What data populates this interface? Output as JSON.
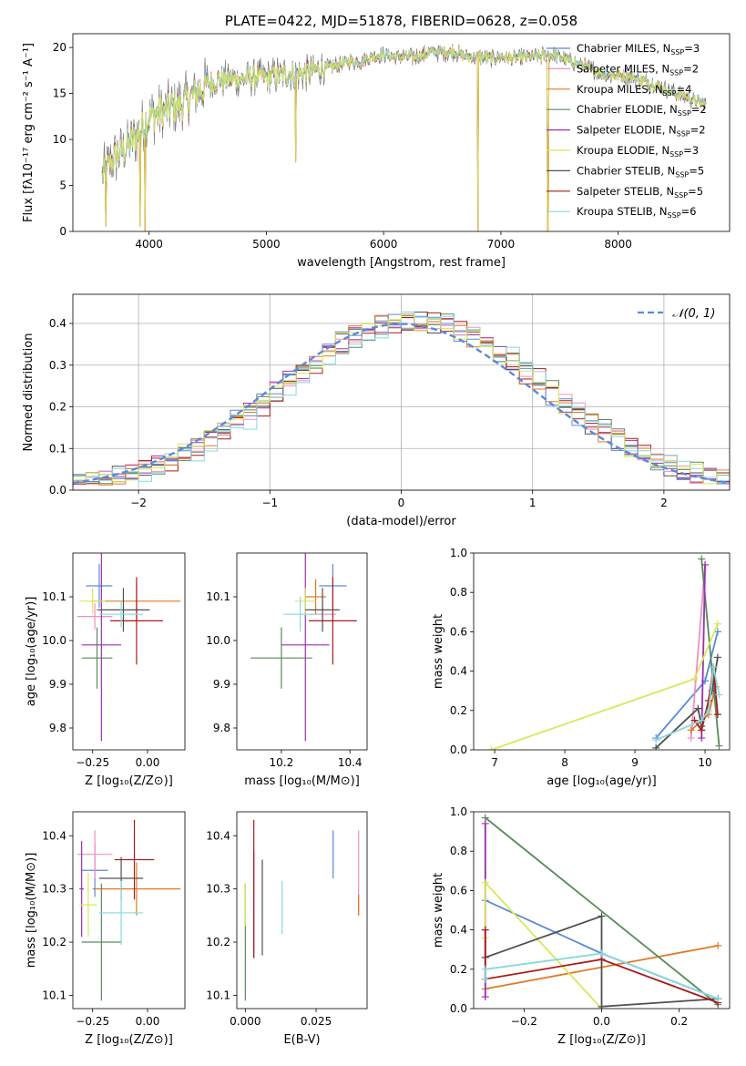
{
  "colors": [
    "#5a8ad8",
    "#f090c0",
    "#e07a28",
    "#5a8a5a",
    "#9a30b0",
    "#d8e858",
    "#505050",
    "#aa1a1a",
    "#88d8dc"
  ],
  "chart_data": [
    {
      "id": "spectrum",
      "type": "line",
      "title": "PLATE=0422, MJD=51878, FIBERID=0628, z=0.058",
      "xlabel": "wavelength [Angstrom, rest frame]",
      "ylabel": "Flux [fλ10⁻¹⁷ erg cm⁻² s⁻¹ A⁻¹]",
      "xlim": [
        3350,
        8950
      ],
      "ylim": [
        0,
        21.5
      ],
      "xticks": [
        4000,
        5000,
        6000,
        7000,
        8000
      ],
      "yticks": [
        0,
        5,
        10,
        15,
        20
      ],
      "grid": false,
      "legend_position": "top-right",
      "legend": [
        {
          "name": "Chabrier MILES, N",
          "sub": "SSP",
          "suffix": "=3"
        },
        {
          "name": "Salpeter MILES, N",
          "sub": "SSP",
          "suffix": "=2"
        },
        {
          "name": "Kroupa MILES, N",
          "sub": "SSP",
          "suffix": "=4"
        },
        {
          "name": "Chabrier ELODIE, N",
          "sub": "SSP",
          "suffix": "=2"
        },
        {
          "name": "Salpeter ELODIE, N",
          "sub": "SSP",
          "suffix": "=2"
        },
        {
          "name": "Kroupa ELODIE, N",
          "sub": "SSP",
          "suffix": "=3"
        },
        {
          "name": "Chabrier STELIB, N",
          "sub": "SSP",
          "suffix": "=5"
        },
        {
          "name": "Salpeter STELIB, N",
          "sub": "SSP",
          "suffix": "=5"
        },
        {
          "name": "Kroupa STELIB, N",
          "sub": "SSP",
          "suffix": "=6"
        }
      ],
      "continuum": [
        [
          3600,
          6.0
        ],
        [
          3700,
          8.0
        ],
        [
          3800,
          9.0
        ],
        [
          3900,
          10.5
        ],
        [
          4000,
          12.5
        ],
        [
          4100,
          13.0
        ],
        [
          4200,
          13.5
        ],
        [
          4300,
          14.0
        ],
        [
          4400,
          15.0
        ],
        [
          4500,
          16.0
        ],
        [
          4600,
          16.5
        ],
        [
          4700,
          16.5
        ],
        [
          4800,
          16.5
        ],
        [
          4900,
          16.8
        ],
        [
          5000,
          16.8
        ],
        [
          5100,
          17.0
        ],
        [
          5200,
          17.2
        ],
        [
          5300,
          17.2
        ],
        [
          5400,
          17.5
        ],
        [
          5500,
          17.8
        ],
        [
          5600,
          18.0
        ],
        [
          5700,
          18.5
        ],
        [
          5800,
          18.5
        ],
        [
          5900,
          19.0
        ],
        [
          6000,
          19.2
        ],
        [
          6100,
          19.0
        ],
        [
          6200,
          19.0
        ],
        [
          6300,
          19.0
        ],
        [
          6400,
          19.5
        ],
        [
          6500,
          19.5
        ],
        [
          6600,
          19.5
        ],
        [
          6700,
          19.0
        ],
        [
          6800,
          19.0
        ],
        [
          6900,
          18.8
        ],
        [
          7000,
          19.0
        ],
        [
          7100,
          18.8
        ],
        [
          7200,
          19.0
        ],
        [
          7300,
          19.0
        ],
        [
          7400,
          19.2
        ],
        [
          7500,
          19.0
        ],
        [
          7600,
          18.5
        ],
        [
          7700,
          18.0
        ],
        [
          7800,
          17.5
        ],
        [
          7900,
          17.0
        ],
        [
          8000,
          17.0
        ],
        [
          8100,
          16.8
        ],
        [
          8200,
          16.5
        ],
        [
          8300,
          16.0
        ],
        [
          8400,
          15.5
        ],
        [
          8500,
          15.0
        ],
        [
          8600,
          14.5
        ],
        [
          8700,
          14.0
        ],
        [
          8750,
          14.0
        ]
      ],
      "absorption_spikes": [
        [
          3630,
          0.5
        ],
        [
          3925,
          0.5
        ],
        [
          3965,
          0.0
        ],
        [
          5250,
          7.5
        ],
        [
          6805,
          0.0
        ],
        [
          7400,
          0.0
        ]
      ]
    },
    {
      "id": "residuals",
      "type": "histogram",
      "xlabel": "(data-model)/error",
      "ylabel": "Normed distribution",
      "xlim": [
        -2.5,
        2.5
      ],
      "ylim": [
        0,
        0.47
      ],
      "xticks": [
        -2,
        -1,
        0,
        1,
        2
      ],
      "xtick_labels": [
        "−2",
        "−1",
        "0",
        "1",
        "2"
      ],
      "yticks": [
        0.0,
        0.1,
        0.2,
        0.3,
        0.4
      ],
      "grid": true,
      "legend_position": "top-right",
      "reference_curve": {
        "name": "𝒩(0, 1)",
        "mean": 0,
        "std": 1,
        "style": "dashed"
      },
      "bin_width": 0.1
    },
    {
      "id": "age-vs-Z",
      "type": "errorbar",
      "xlabel": "Z [log₁₀(Z/Z⊙)]",
      "ylabel": "age  [log₁₀(age/yr)]",
      "xlim": [
        -0.34,
        0.17
      ],
      "ylim": [
        9.75,
        10.2
      ],
      "xticks": [
        -0.25,
        0.0
      ],
      "xtick_labels": [
        "−0.25",
        "0.00"
      ],
      "yticks": [
        9.8,
        9.9,
        10.0,
        10.1
      ],
      "points": [
        {
          "x": -0.22,
          "y": 10.125,
          "xerr": 0.06,
          "yerr": 0.05
        },
        {
          "x": -0.24,
          "y": 10.055,
          "xerr": 0.08,
          "yerr": 0.03
        },
        {
          "x": -0.05,
          "y": 10.09,
          "xerr": 0.2,
          "yerr": 0.04
        },
        {
          "x": -0.23,
          "y": 9.96,
          "xerr": 0.07,
          "yerr": 0.07
        },
        {
          "x": -0.21,
          "y": 9.99,
          "xerr": 0.09,
          "yerr": 0.22
        },
        {
          "x": -0.25,
          "y": 10.09,
          "xerr": 0.06,
          "yerr": 0.03
        },
        {
          "x": -0.11,
          "y": 10.07,
          "xerr": 0.12,
          "yerr": 0.05
        },
        {
          "x": -0.05,
          "y": 10.045,
          "xerr": 0.12,
          "yerr": 0.1
        },
        {
          "x": -0.12,
          "y": 10.06,
          "xerr": 0.1,
          "yerr": 0.03
        }
      ]
    },
    {
      "id": "age-vs-mass",
      "type": "errorbar",
      "xlabel": "mass [log₁₀(M/M⊙)]",
      "ylabel": "",
      "xlim": [
        10.07,
        10.45
      ],
      "ylim": [
        9.75,
        10.2
      ],
      "xticks": [
        10.2,
        10.4
      ],
      "xtick_labels": [
        "10.2",
        "10.4"
      ],
      "yticks": [
        9.8,
        9.9,
        10.0,
        10.1
      ],
      "points": [
        {
          "x": 10.35,
          "y": 10.125,
          "xerr": 0.04,
          "yerr": 0.05
        },
        {
          "x": 10.32,
          "y": 10.06,
          "xerr": 0.04,
          "yerr": 0.03
        },
        {
          "x": 10.3,
          "y": 10.1,
          "xerr": 0.03,
          "yerr": 0.04
        },
        {
          "x": 10.2,
          "y": 9.96,
          "xerr": 0.09,
          "yerr": 0.07
        },
        {
          "x": 10.27,
          "y": 9.99,
          "xerr": 0.07,
          "yerr": 0.22
        },
        {
          "x": 10.27,
          "y": 10.09,
          "xerr": 0.03,
          "yerr": 0.03
        },
        {
          "x": 10.32,
          "y": 10.07,
          "xerr": 0.05,
          "yerr": 0.05
        },
        {
          "x": 10.35,
          "y": 10.045,
          "xerr": 0.07,
          "yerr": 0.1
        },
        {
          "x": 10.255,
          "y": 10.06,
          "xerr": 0.05,
          "yerr": 0.04
        }
      ]
    },
    {
      "id": "weight-vs-age",
      "type": "line",
      "xlabel": "age  [log₁₀(age/yr)]",
      "ylabel": "mass weight",
      "xlim": [
        6.7,
        10.35
      ],
      "ylim": [
        0,
        1.0
      ],
      "xticks": [
        7,
        8,
        9,
        10
      ],
      "xtick_labels": [
        "7",
        "8",
        "9",
        "10"
      ],
      "yticks": [
        0.0,
        0.2,
        0.4,
        0.6,
        0.8,
        1.0
      ],
      "series": [
        {
          "x": [
            9.3,
            10.0,
            10.18
          ],
          "y": [
            0.06,
            0.35,
            0.6
          ]
        },
        {
          "x": [
            9.8,
            10.0
          ],
          "y": [
            0.06,
            0.94
          ]
        },
        {
          "x": [
            9.8,
            10.05,
            10.15
          ],
          "y": [
            0.1,
            0.18,
            0.32
          ]
        },
        {
          "x": [
            9.95,
            10.2
          ],
          "y": [
            0.97,
            0.02
          ]
        },
        {
          "x": [
            9.95,
            10.0
          ],
          "y": [
            0.06,
            0.94
          ]
        },
        {
          "x": [
            6.95,
            9.85,
            10.18
          ],
          "y": [
            0.0,
            0.36,
            0.64
          ]
        },
        {
          "x": [
            9.3,
            9.9,
            9.95,
            10.1,
            10.18
          ],
          "y": [
            0.01,
            0.21,
            0.12,
            0.3,
            0.47
          ]
        },
        {
          "x": [
            9.85,
            9.95,
            10.05,
            10.12,
            10.18
          ],
          "y": [
            0.15,
            0.1,
            0.25,
            0.42,
            0.18
          ]
        },
        {
          "x": [
            9.3,
            9.95,
            10.05,
            10.12,
            10.2
          ],
          "y": [
            0.05,
            0.15,
            0.2,
            0.42,
            0.28
          ]
        }
      ]
    },
    {
      "id": "mass-vs-Z",
      "type": "errorbar",
      "xlabel": "Z [log₁₀(Z/Z⊙)]",
      "ylabel": "mass [log₁₀(M/M⊙)]",
      "xlim": [
        -0.34,
        0.17
      ],
      "ylim": [
        10.075,
        10.445
      ],
      "xticks": [
        -0.25,
        0.0
      ],
      "xtick_labels": [
        "−0.25",
        "0.00"
      ],
      "yticks": [
        10.1,
        10.2,
        10.3,
        10.4
      ],
      "points": [
        {
          "x": -0.24,
          "y": 10.335,
          "xerr": 0.06,
          "yerr": 0.05
        },
        {
          "x": -0.24,
          "y": 10.365,
          "xerr": 0.08,
          "yerr": 0.045
        },
        {
          "x": -0.05,
          "y": 10.3,
          "xerr": 0.2,
          "yerr": 0.05
        },
        {
          "x": -0.21,
          "y": 10.2,
          "xerr": 0.09,
          "yerr": 0.11
        },
        {
          "x": -0.3,
          "y": 10.3,
          "xerr": 0.01,
          "yerr": 0.09
        },
        {
          "x": -0.27,
          "y": 10.27,
          "xerr": 0.04,
          "yerr": 0.06
        },
        {
          "x": -0.12,
          "y": 10.32,
          "xerr": 0.1,
          "yerr": 0.04
        },
        {
          "x": -0.06,
          "y": 10.355,
          "xerr": 0.09,
          "yerr": 0.075
        },
        {
          "x": -0.12,
          "y": 10.255,
          "xerr": 0.1,
          "yerr": 0.06
        }
      ]
    },
    {
      "id": "mass-vs-ebv",
      "type": "errorbar",
      "xlabel": "E(B-V)",
      "ylabel": "",
      "xlim": [
        -0.003,
        0.043
      ],
      "ylim": [
        10.075,
        10.445
      ],
      "xticks": [
        0.0,
        0.025
      ],
      "xtick_labels": [
        "0.000",
        "0.025"
      ],
      "yticks": [
        10.1,
        10.2,
        10.3,
        10.4
      ],
      "points": [
        {
          "x": 0.031,
          "y": 10.365,
          "xerr": 0,
          "yerr": 0.045
        },
        {
          "x": 0.04,
          "y": 10.33,
          "xerr": 0,
          "yerr": 0.08
        },
        {
          "x": 0.04,
          "y": 10.27,
          "xerr": 0,
          "yerr": 0.02
        },
        {
          "x": 0.0,
          "y": 10.2,
          "xerr": 0,
          "yerr": 0.11
        },
        {
          "x": 0.003,
          "y": 10.27,
          "xerr": 0,
          "yerr": 0.1
        },
        {
          "x": 0.0,
          "y": 10.27,
          "xerr": 0,
          "yerr": 0.04
        },
        {
          "x": 0.006,
          "y": 10.265,
          "xerr": 0,
          "yerr": 0.09
        },
        {
          "x": 0.003,
          "y": 10.3,
          "xerr": 0,
          "yerr": 0.13
        },
        {
          "x": 0.013,
          "y": 10.265,
          "xerr": 0,
          "yerr": 0.05
        }
      ]
    },
    {
      "id": "weight-vs-Z",
      "type": "line",
      "xlabel": "Z [log₁₀(Z/Z⊙)]",
      "ylabel": "mass weight",
      "xlim": [
        -0.33,
        0.33
      ],
      "ylim": [
        0,
        1.0
      ],
      "xticks": [
        -0.2,
        0.0,
        0.2
      ],
      "xtick_labels": [
        "−0.2",
        "0.0",
        "0.2"
      ],
      "yticks": [
        0.0,
        0.2,
        0.4,
        0.6,
        0.8,
        1.0
      ],
      "series": [
        {
          "x": [
            -0.3,
            0.0,
            0.3
          ],
          "y": [
            0.55,
            0.28,
            0.05
          ]
        },
        {
          "x": [
            -0.3,
            -0.3
          ],
          "y": [
            0.06,
            0.94
          ]
        },
        {
          "x": [
            -0.3,
            0.3
          ],
          "y": [
            0.1,
            0.32
          ]
        },
        {
          "x": [
            -0.3,
            0.3
          ],
          "y": [
            0.97,
            0.02
          ]
        },
        {
          "x": [
            -0.3,
            -0.3
          ],
          "y": [
            0.06,
            0.94
          ]
        },
        {
          "x": [
            -0.3,
            -0.3,
            0.0
          ],
          "y": [
            0.36,
            0.64,
            0.0
          ]
        },
        {
          "x": [
            -0.3,
            0.0,
            0.0,
            0.3
          ],
          "y": [
            0.26,
            0.47,
            0.01,
            0.05
          ]
        },
        {
          "x": [
            -0.3,
            -0.3,
            0.0,
            0.3
          ],
          "y": [
            0.4,
            0.15,
            0.25,
            0.03
          ]
        },
        {
          "x": [
            -0.3,
            -0.3,
            0.0,
            0.3
          ],
          "y": [
            0.15,
            0.2,
            0.28,
            0.05
          ]
        }
      ]
    }
  ]
}
